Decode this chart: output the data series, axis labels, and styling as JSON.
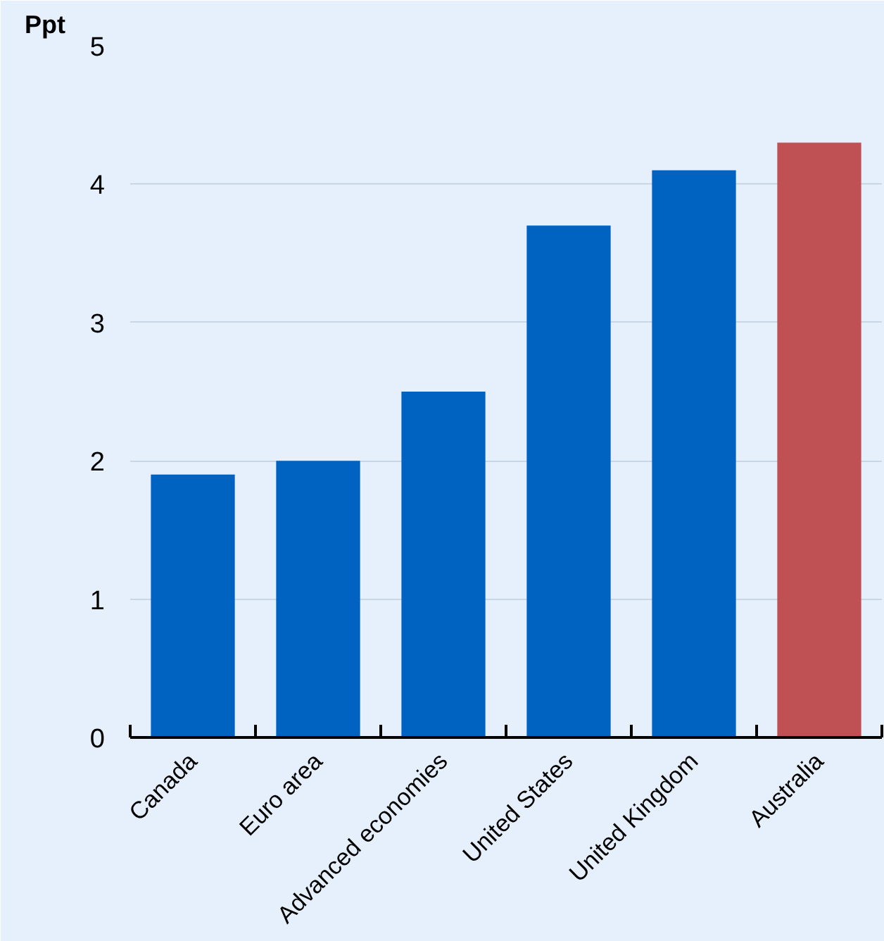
{
  "chart_data": {
    "type": "bar",
    "ylabel": "Ppt",
    "categories": [
      "Canada",
      "Euro area",
      "Advanced economies",
      "United States",
      "United Kingdom",
      "Australia"
    ],
    "values": [
      1.9,
      2.0,
      2.5,
      3.7,
      4.1,
      4.3
    ],
    "colors": [
      "#0062c1",
      "#0062c1",
      "#0062c1",
      "#0062c1",
      "#0062c1",
      "#bf5053"
    ],
    "ylim": [
      0,
      5
    ],
    "yticks": [
      0,
      1,
      2,
      3,
      4,
      5
    ],
    "grid": "y"
  }
}
